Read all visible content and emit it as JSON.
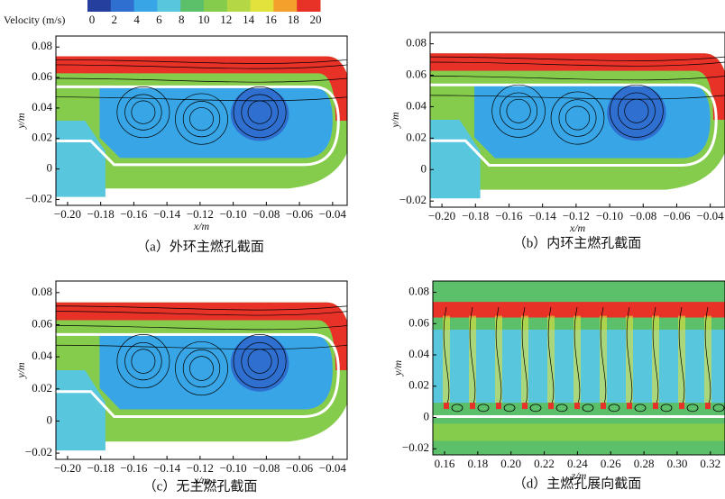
{
  "colorbar": {
    "label": "Velocity (m/s)",
    "ticks": [
      "0",
      "2",
      "4",
      "6",
      "8",
      "10",
      "12",
      "14",
      "16",
      "18",
      "20"
    ],
    "colors": [
      "#243f9e",
      "#2f6fd0",
      "#38a6e6",
      "#58c6dc",
      "#5cbf6a",
      "#86cc4c",
      "#b4d844",
      "#e2e23c",
      "#f4a02c",
      "#e83228"
    ]
  },
  "panels": [
    {
      "caption": "（a）外环主燃孔截面",
      "x_label": "x/m",
      "y_label": "y/m",
      "xticks": [
        "−0.20",
        "−0.18",
        "−0.16",
        "−0.14",
        "−0.12",
        "−0.10",
        "−0.08",
        "−0.06",
        "−0.04"
      ],
      "yticks": [
        "0.08",
        "0.06",
        "0.04",
        "0.02",
        "0",
        "−0.02"
      ]
    },
    {
      "caption": "（b）内环主燃孔截面",
      "x_label": "x/m",
      "y_label": "y/m",
      "xticks": [
        "−0.20",
        "−0.18",
        "−0.16",
        "−0.14",
        "−0.12",
        "−0.10",
        "−0.08",
        "−0.06",
        "−0.04"
      ],
      "yticks": [
        "0.08",
        "0.06",
        "0.04",
        "0.02",
        "0",
        "−0.02"
      ]
    },
    {
      "caption": "（c）无主燃孔截面",
      "x_label": "x/m",
      "y_label": "y/m",
      "xticks": [
        "−0.20",
        "−0.18",
        "−0.16",
        "−0.14",
        "−0.12",
        "−0.10",
        "−0.08",
        "−0.06",
        "−0.04"
      ],
      "yticks": [
        "0.08",
        "0.06",
        "0.04",
        "0.02",
        "0",
        "−0.02"
      ]
    },
    {
      "caption": "（d）主燃孔展向截面",
      "x_label": "z/m",
      "y_label": "y/m",
      "xticks": [
        "0.16",
        "0.18",
        "0.20",
        "0.22",
        "0.24",
        "0.26",
        "0.28",
        "0.30",
        "0.32"
      ],
      "yticks": [
        "0.08",
        "0.06",
        "0.04",
        "0.02",
        "0",
        "−0.02"
      ]
    }
  ]
}
